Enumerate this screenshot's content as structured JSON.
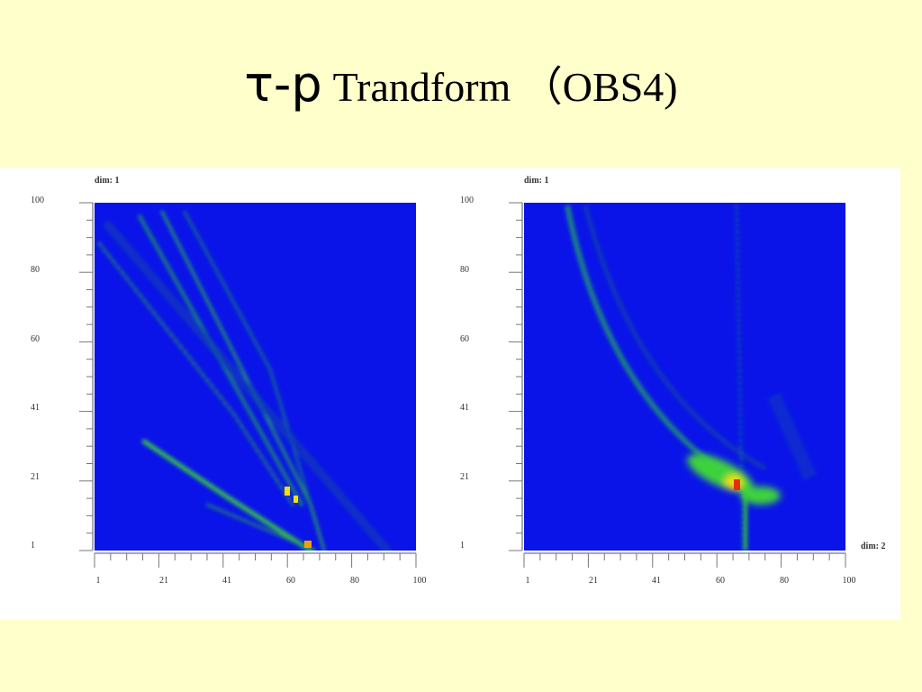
{
  "header": {
    "title_symbol": "τ-p",
    "title_text": "Trandform （OBS4)"
  },
  "panels": [
    {
      "dim_label": "dim: 1",
      "y_tick_labels": [
        "100",
        "80",
        "60",
        "41",
        "21",
        "1"
      ],
      "x_tick_labels": [
        "1",
        "21",
        "41",
        "60",
        "80",
        "100"
      ]
    },
    {
      "dim_label": "dim: 1",
      "y_tick_labels": [
        "100",
        "80",
        "60",
        "41",
        "21",
        "1"
      ],
      "x_tick_labels": [
        "1",
        "21",
        "41",
        "60",
        "80",
        "100"
      ],
      "x_dim_label": "dim: 2"
    }
  ]
}
